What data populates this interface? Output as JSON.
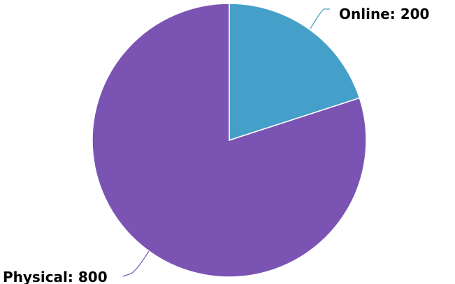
{
  "chart_data": {
    "type": "pie",
    "title": "",
    "slices": [
      {
        "name": "Online",
        "value": 200,
        "color": "#45a0c9",
        "label": "Online: 200"
      },
      {
        "name": "Physical",
        "value": 800,
        "color": "#7b54b3",
        "label": "Physical: 800"
      }
    ],
    "start_angle_deg": 0,
    "direction": "clockwise",
    "legend": "none"
  }
}
